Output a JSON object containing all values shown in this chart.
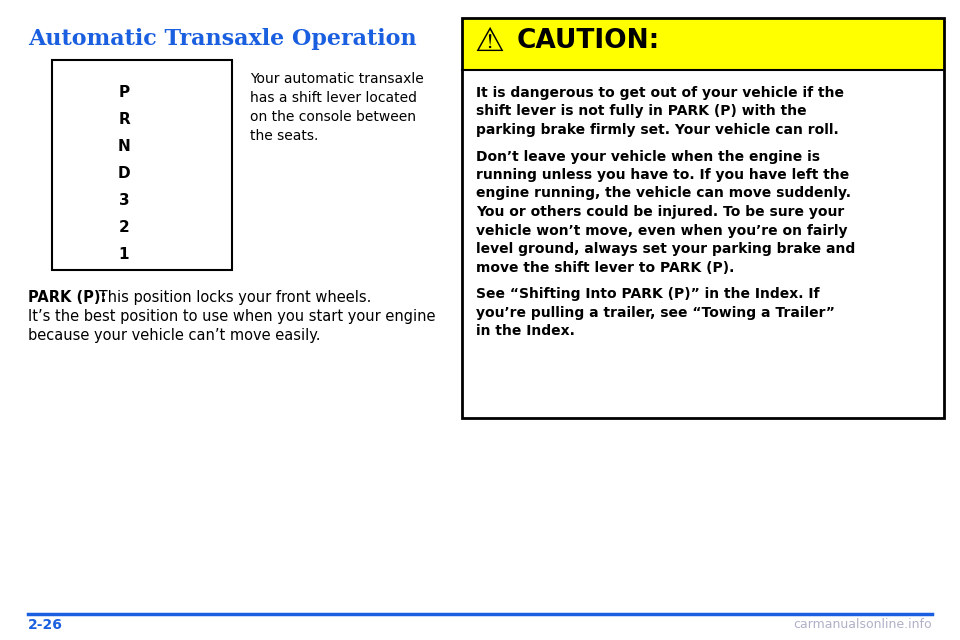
{
  "title": "Automatic Transaxle Operation",
  "title_color": "#1a5fe0",
  "title_fontsize": 16,
  "bg_color": "#ffffff",
  "gear_labels": [
    "P",
    "R",
    "N",
    "D",
    "3",
    "2",
    "1"
  ],
  "gear_box_text_lines": [
    "Your automatic transaxle",
    "has a shift lever located",
    "on the console between",
    "the seats."
  ],
  "park_bold": "PARK (P):",
  "park_normal_line1": " This position locks your front wheels.",
  "park_normal_line2": "It’s the best position to use when you start your engine",
  "park_normal_line3": "because your vehicle can’t move easily.",
  "caution_bg": "#ffff00",
  "caution_border": "#000000",
  "caution_lines": [
    "It is dangerous to get out of your vehicle if the",
    "shift lever is not fully in PARK (P) with the",
    "parking brake firmly set. Your vehicle can roll.",
    "",
    "Don’t leave your vehicle when the engine is",
    "running unless you have to. If you have left the",
    "engine running, the vehicle can move suddenly.",
    "You or others could be injured. To be sure your",
    "vehicle won’t move, even when you’re on fairly",
    "level ground, always set your parking brake and",
    "move the shift lever to PARK (P).",
    "",
    "See “Shifting Into PARK (P)” in the Index. If",
    "you’re pulling a trailer, see “Towing a Trailer”",
    "in the Index."
  ],
  "footer_page": "2-26",
  "footer_line_color": "#1a5fe0",
  "footer_watermark": "carmanualsonline.info",
  "footer_watermark_color": "#b0b0c8"
}
